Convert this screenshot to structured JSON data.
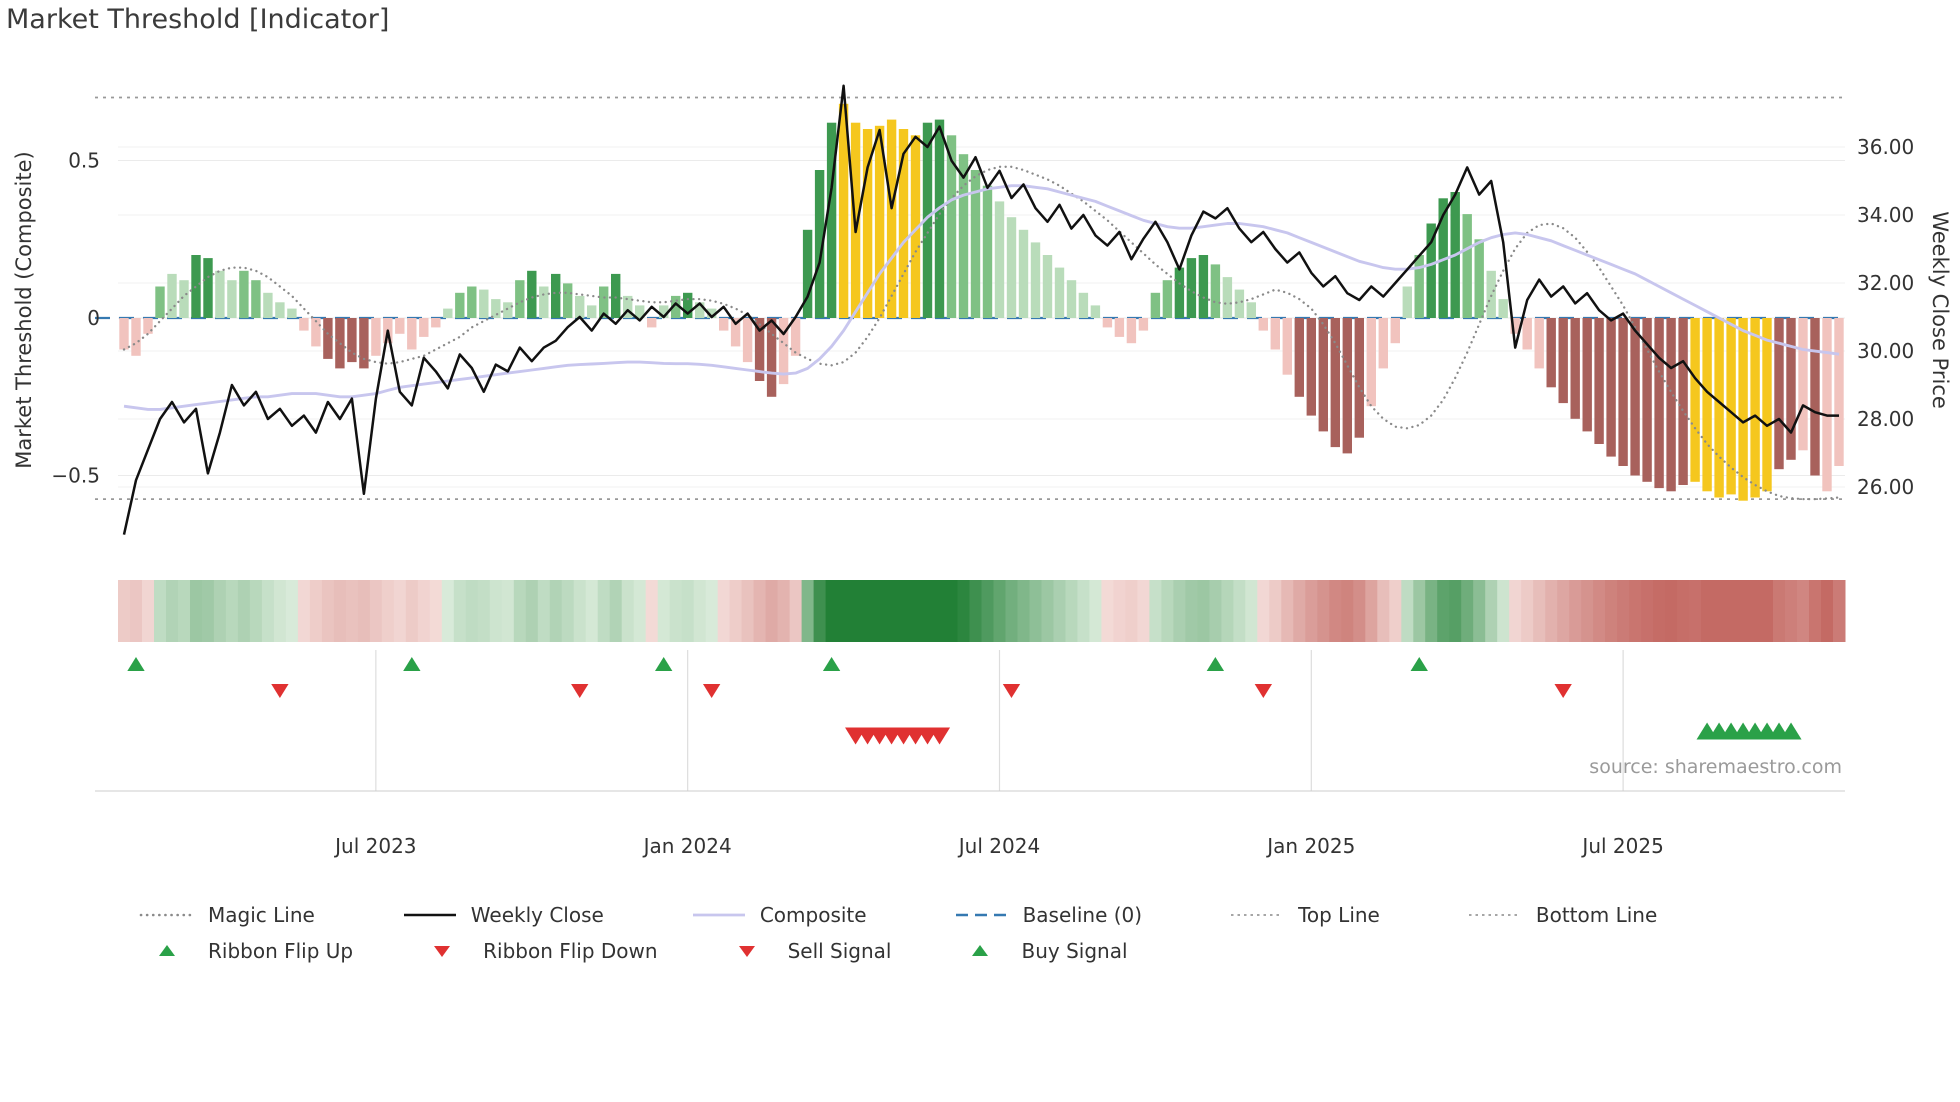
{
  "title": "Market Threshold [Indicator]",
  "source_credit": "source: sharemaestro.com",
  "axes": {
    "left_label": "Market Threshold (Composite)",
    "right_label": "Weekly Close Price",
    "left_ticks": [
      {
        "v": 0.5,
        "label": "0.5"
      },
      {
        "v": 0,
        "label": "0"
      },
      {
        "v": -0.5,
        "label": "−0.5"
      }
    ],
    "right_ticks": [
      {
        "v": 36,
        "label": "36.00"
      },
      {
        "v": 34,
        "label": "34.00"
      },
      {
        "v": 32,
        "label": "32.00"
      },
      {
        "v": 30,
        "label": "30.00"
      },
      {
        "v": 28,
        "label": "28.00"
      },
      {
        "v": 26,
        "label": "26.00"
      }
    ],
    "x_ticks": [
      {
        "i": 21,
        "label": "Jul 2023"
      },
      {
        "i": 47,
        "label": "Jan 2024"
      },
      {
        "i": 73,
        "label": "Jul 2024"
      },
      {
        "i": 99,
        "label": "Jan 2025"
      },
      {
        "i": 125,
        "label": "Jul 2025"
      }
    ]
  },
  "legend": {
    "magic_line": "Magic Line",
    "weekly_close": "Weekly Close",
    "composite": "Composite",
    "baseline": "Baseline (0)",
    "top_line": "Top Line",
    "bottom_line": "Bottom Line",
    "ribbon_flip_up": "Ribbon Flip Up",
    "ribbon_flip_down": "Ribbon Flip Down",
    "sell_signal": "Sell Signal",
    "buy_signal": "Buy Signal"
  },
  "colors": {
    "weekly_close": "#111111",
    "composite": "#c8c6ee",
    "magic_line": "#8a8a8a",
    "baseline": "#3579b1",
    "top_bottom_line": "#999999",
    "buy_green": "#2aa148",
    "sell_red": "#e03131",
    "bar_palette": {
      "g1": "#b9dcba",
      "g2": "#7fc184",
      "g3": "#3d9950",
      "p": "#f1c3be",
      "r": "#a8615c",
      "y": "#f5c71e"
    }
  },
  "chart_data": {
    "type": "mixed-bar-line",
    "description": "Weekly market-threshold composite histogram (left axis) with weekly close price (right axis), composite and magic overlay lines, signal ribbon and buy/sell markers.",
    "x_start": "2023-02-06",
    "x_freq_weeks": 1,
    "n_points": 144,
    "left_axis_range": [
      -0.75,
      0.78
    ],
    "right_axis_range": [
      24.5,
      38.0
    ],
    "baseline": 0,
    "top_line": 0.7,
    "bottom_line": -0.575,
    "threshold_bars": {
      "values": [
        -0.1,
        -0.12,
        -0.05,
        0.1,
        0.14,
        0.12,
        0.2,
        0.19,
        0.15,
        0.12,
        0.15,
        0.12,
        0.08,
        0.05,
        0.03,
        -0.04,
        -0.09,
        -0.13,
        -0.16,
        -0.14,
        -0.16,
        -0.12,
        -0.08,
        -0.05,
        -0.1,
        -0.06,
        -0.03,
        0.03,
        0.08,
        0.1,
        0.09,
        0.06,
        0.05,
        0.12,
        0.15,
        0.1,
        0.14,
        0.11,
        0.07,
        0.04,
        0.1,
        0.14,
        0.07,
        0.04,
        -0.03,
        0.04,
        0.07,
        0.08,
        0.05,
        0.03,
        -0.04,
        -0.09,
        -0.14,
        -0.2,
        -0.25,
        -0.21,
        -0.12,
        0.28,
        0.47,
        0.62,
        0.68,
        0.62,
        0.6,
        0.61,
        0.63,
        0.6,
        0.58,
        0.62,
        0.63,
        0.58,
        0.52,
        0.47,
        0.42,
        0.37,
        0.32,
        0.28,
        0.24,
        0.2,
        0.16,
        0.12,
        0.08,
        0.04,
        -0.03,
        -0.06,
        -0.08,
        -0.04,
        0.08,
        0.12,
        0.16,
        0.19,
        0.2,
        0.17,
        0.13,
        0.09,
        0.05,
        -0.04,
        -0.1,
        -0.18,
        -0.25,
        -0.31,
        -0.36,
        -0.41,
        -0.43,
        -0.38,
        -0.28,
        -0.16,
        -0.08,
        0.1,
        0.2,
        0.3,
        0.38,
        0.4,
        0.33,
        0.25,
        0.15,
        0.06,
        -0.05,
        -0.1,
        -0.16,
        -0.22,
        -0.27,
        -0.32,
        -0.36,
        -0.4,
        -0.44,
        -0.47,
        -0.5,
        -0.52,
        -0.54,
        -0.55,
        -0.53,
        -0.52,
        -0.55,
        -0.57,
        -0.56,
        -0.58,
        -0.57,
        -0.55,
        -0.48,
        -0.45,
        -0.42,
        -0.5,
        -0.55,
        -0.47
      ],
      "colors": [
        "p",
        "p",
        "p",
        "g2",
        "g1",
        "g1",
        "g3",
        "g3",
        "g1",
        "g1",
        "g2",
        "g2",
        "g1",
        "g1",
        "g1",
        "p",
        "p",
        "r",
        "r",
        "r",
        "r",
        "p",
        "p",
        "p",
        "p",
        "p",
        "p",
        "g1",
        "g2",
        "g2",
        "g1",
        "g1",
        "g1",
        "g2",
        "g3",
        "g1",
        "g3",
        "g2",
        "g1",
        "g1",
        "g2",
        "g3",
        "g1",
        "g1",
        "p",
        "g1",
        "g2",
        "g3",
        "g1",
        "g1",
        "p",
        "p",
        "p",
        "r",
        "r",
        "p",
        "p",
        "g3",
        "g3",
        "g3",
        "y",
        "y",
        "y",
        "y",
        "y",
        "y",
        "y",
        "g3",
        "g3",
        "g2",
        "g2",
        "g2",
        "g2",
        "g1",
        "g1",
        "g1",
        "g1",
        "g1",
        "g1",
        "g1",
        "g1",
        "g1",
        "p",
        "p",
        "p",
        "p",
        "g2",
        "g2",
        "g3",
        "g3",
        "g3",
        "g2",
        "g1",
        "g1",
        "g1",
        "p",
        "p",
        "p",
        "r",
        "r",
        "r",
        "r",
        "r",
        "r",
        "p",
        "p",
        "p",
        "g1",
        "g2",
        "g3",
        "g3",
        "g3",
        "g2",
        "g2",
        "g1",
        "g1",
        "p",
        "p",
        "p",
        "r",
        "r",
        "r",
        "r",
        "r",
        "r",
        "r",
        "r",
        "r",
        "r",
        "r",
        "r",
        "y",
        "y",
        "y",
        "y",
        "y",
        "y",
        "y",
        "r",
        "r",
        "p",
        "r",
        "p",
        "p"
      ]
    },
    "weekly_close": [
      24.6,
      26.2,
      27.1,
      28.0,
      28.5,
      27.9,
      28.3,
      26.4,
      27.6,
      29.0,
      28.4,
      28.8,
      28.0,
      28.3,
      27.8,
      28.1,
      27.6,
      28.5,
      28.0,
      28.6,
      25.8,
      28.6,
      30.6,
      28.8,
      28.4,
      29.8,
      29.4,
      28.9,
      29.9,
      29.5,
      28.8,
      29.6,
      29.4,
      30.1,
      29.7,
      30.1,
      30.3,
      30.7,
      31.0,
      30.6,
      31.1,
      30.8,
      31.2,
      30.9,
      31.3,
      31.0,
      31.4,
      31.1,
      31.4,
      31.0,
      31.3,
      30.8,
      31.1,
      30.6,
      30.9,
      30.5,
      31.0,
      31.6,
      32.6,
      34.8,
      37.8,
      33.5,
      35.4,
      36.5,
      34.2,
      35.8,
      36.3,
      36.0,
      36.6,
      35.6,
      35.1,
      35.7,
      34.8,
      35.3,
      34.5,
      34.9,
      34.2,
      33.8,
      34.3,
      33.6,
      34.0,
      33.4,
      33.1,
      33.5,
      32.7,
      33.3,
      33.8,
      33.2,
      32.4,
      33.4,
      34.1,
      33.9,
      34.2,
      33.6,
      33.2,
      33.5,
      33.0,
      32.6,
      32.9,
      32.3,
      31.9,
      32.2,
      31.7,
      31.5,
      31.9,
      31.6,
      32.0,
      32.4,
      32.8,
      33.2,
      34.0,
      34.6,
      35.4,
      34.6,
      35.0,
      33.2,
      30.1,
      31.5,
      32.1,
      31.6,
      31.9,
      31.4,
      31.7,
      31.2,
      30.9,
      31.1,
      30.6,
      30.2,
      29.8,
      29.5,
      29.7,
      29.2,
      28.8,
      28.5,
      28.2,
      27.9,
      28.1,
      27.8,
      28.0,
      27.6,
      28.4,
      28.2,
      28.1,
      28.1
    ],
    "composite": [
      -0.28,
      -0.285,
      -0.29,
      -0.29,
      -0.285,
      -0.28,
      -0.275,
      -0.27,
      -0.265,
      -0.26,
      -0.255,
      -0.25,
      -0.25,
      -0.245,
      -0.24,
      -0.24,
      -0.24,
      -0.245,
      -0.25,
      -0.25,
      -0.245,
      -0.24,
      -0.23,
      -0.22,
      -0.215,
      -0.21,
      -0.205,
      -0.2,
      -0.195,
      -0.19,
      -0.185,
      -0.18,
      -0.175,
      -0.17,
      -0.165,
      -0.16,
      -0.155,
      -0.15,
      -0.148,
      -0.146,
      -0.144,
      -0.142,
      -0.14,
      -0.14,
      -0.142,
      -0.144,
      -0.145,
      -0.145,
      -0.147,
      -0.15,
      -0.155,
      -0.16,
      -0.165,
      -0.17,
      -0.175,
      -0.178,
      -0.175,
      -0.16,
      -0.13,
      -0.09,
      -0.04,
      0.02,
      0.08,
      0.14,
      0.19,
      0.24,
      0.28,
      0.32,
      0.35,
      0.375,
      0.39,
      0.4,
      0.41,
      0.415,
      0.42,
      0.42,
      0.415,
      0.41,
      0.4,
      0.39,
      0.38,
      0.37,
      0.355,
      0.34,
      0.325,
      0.31,
      0.3,
      0.29,
      0.285,
      0.285,
      0.29,
      0.295,
      0.3,
      0.3,
      0.295,
      0.29,
      0.28,
      0.27,
      0.255,
      0.24,
      0.225,
      0.21,
      0.195,
      0.18,
      0.17,
      0.16,
      0.155,
      0.155,
      0.16,
      0.17,
      0.185,
      0.2,
      0.22,
      0.24,
      0.255,
      0.265,
      0.27,
      0.265,
      0.255,
      0.245,
      0.23,
      0.215,
      0.2,
      0.185,
      0.17,
      0.155,
      0.14,
      0.12,
      0.1,
      0.08,
      0.06,
      0.04,
      0.02,
      0.0,
      -0.02,
      -0.04,
      -0.055,
      -0.07,
      -0.08,
      -0.09,
      -0.1,
      -0.105,
      -0.11,
      -0.115
    ],
    "magic_line": [
      -0.1,
      -0.08,
      -0.05,
      -0.01,
      0.03,
      0.07,
      0.1,
      0.13,
      0.15,
      0.16,
      0.16,
      0.15,
      0.13,
      0.1,
      0.07,
      0.03,
      -0.01,
      -0.05,
      -0.08,
      -0.11,
      -0.13,
      -0.14,
      -0.145,
      -0.14,
      -0.13,
      -0.12,
      -0.1,
      -0.08,
      -0.06,
      -0.03,
      -0.01,
      0.01,
      0.03,
      0.05,
      0.065,
      0.075,
      0.08,
      0.08,
      0.075,
      0.07,
      0.065,
      0.065,
      0.06,
      0.055,
      0.05,
      0.05,
      0.055,
      0.06,
      0.06,
      0.055,
      0.045,
      0.03,
      0.01,
      -0.02,
      -0.05,
      -0.08,
      -0.11,
      -0.13,
      -0.145,
      -0.15,
      -0.14,
      -0.11,
      -0.06,
      0.0,
      0.07,
      0.14,
      0.21,
      0.27,
      0.33,
      0.38,
      0.42,
      0.45,
      0.47,
      0.48,
      0.48,
      0.47,
      0.455,
      0.44,
      0.42,
      0.395,
      0.37,
      0.34,
      0.31,
      0.275,
      0.24,
      0.205,
      0.17,
      0.14,
      0.11,
      0.085,
      0.065,
      0.05,
      0.045,
      0.05,
      0.06,
      0.075,
      0.09,
      0.08,
      0.06,
      0.03,
      -0.02,
      -0.08,
      -0.15,
      -0.22,
      -0.28,
      -0.32,
      -0.345,
      -0.35,
      -0.34,
      -0.31,
      -0.26,
      -0.19,
      -0.11,
      -0.02,
      0.07,
      0.15,
      0.22,
      0.27,
      0.295,
      0.3,
      0.285,
      0.255,
      0.21,
      0.16,
      0.1,
      0.04,
      -0.03,
      -0.1,
      -0.17,
      -0.235,
      -0.295,
      -0.35,
      -0.4,
      -0.44,
      -0.475,
      -0.505,
      -0.53,
      -0.55,
      -0.565,
      -0.572,
      -0.575,
      -0.575,
      -0.573,
      -0.57
    ],
    "events": {
      "ribbon_flip_up": [
        1,
        24,
        45,
        59,
        91,
        108
      ],
      "ribbon_flip_down": [
        13,
        38,
        49,
        74,
        95,
        120
      ],
      "sell_signals": [
        61,
        62,
        63,
        64,
        65,
        66,
        67,
        68
      ],
      "buy_signals": [
        132,
        133,
        134,
        135,
        136,
        137,
        138,
        139
      ]
    }
  }
}
